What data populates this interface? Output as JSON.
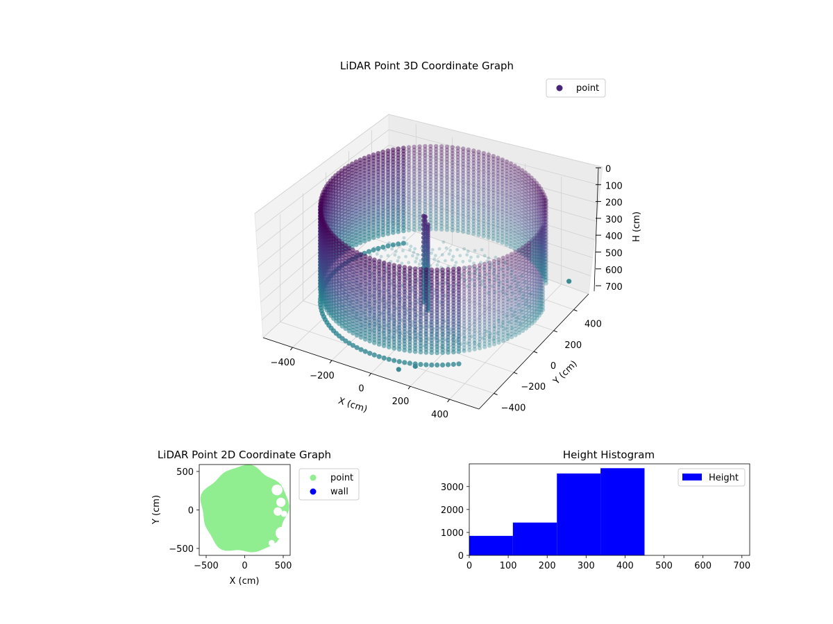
{
  "chart_data": [
    {
      "type": "scatter",
      "projection": "3d",
      "title": "LiDAR Point 3D Coordinate Graph",
      "xlabel": "X (cm)",
      "ylabel": "Y (cm)",
      "zlabel": "H (cm)",
      "xticks": [
        "−400",
        "−200",
        "0",
        "200",
        "400"
      ],
      "yticks": [
        "−400",
        "−200",
        "0",
        "200",
        "400"
      ],
      "zticks": [
        "0",
        "100",
        "200",
        "300",
        "400",
        "500",
        "600",
        "700"
      ],
      "xlim": [
        -550,
        550
      ],
      "ylim": [
        -550,
        550
      ],
      "zlim": [
        0,
        700
      ],
      "z_inverted": true,
      "grid": true,
      "legend": {
        "placement": "top-right",
        "entries": [
          "point"
        ]
      },
      "colormap": "viridis (dark purple to teal)",
      "series": [
        {
          "name": "point",
          "description_points": [
            {
              "x": 380,
              "y": 530,
              "h": 680
            },
            {
              "x": 150,
              "y": -420,
              "h": 680
            },
            {
              "x": 100,
              "y": -480,
              "h": 680
            }
          ]
        }
      ]
    },
    {
      "type": "scatter",
      "title": "LiDAR Point 2D Coordinate Graph",
      "xlabel": "X (cm)",
      "ylabel": "Y (cm)",
      "xticks": [
        "−500",
        "0",
        "500"
      ],
      "yticks": [
        "−500",
        "0",
        "500"
      ],
      "xlim": [
        -590,
        590
      ],
      "ylim": [
        -590,
        590
      ],
      "legend": {
        "placement": "outside-right",
        "entries": [
          "point",
          "wall"
        ]
      },
      "series": [
        {
          "name": "point",
          "color": "#90ee90"
        },
        {
          "name": "wall",
          "color": "#0000ff"
        }
      ]
    },
    {
      "type": "bar",
      "title": "Height Histogram",
      "xticks": [
        "0",
        "100",
        "200",
        "300",
        "400",
        "500",
        "600",
        "700"
      ],
      "yticks": [
        "0",
        "1000",
        "2000",
        "3000"
      ],
      "xlim": [
        0,
        720
      ],
      "ylim": [
        0,
        3990
      ],
      "legend": {
        "placement": "top-right",
        "entries": [
          "Height"
        ]
      },
      "series": [
        {
          "name": "Height",
          "color": "#0000ff",
          "bins": [
            {
              "start": 0,
              "end": 112,
              "count": 850
            },
            {
              "start": 112,
              "end": 225,
              "count": 1430
            },
            {
              "start": 225,
              "end": 337,
              "count": 3570
            },
            {
              "start": 337,
              "end": 450,
              "count": 3800
            }
          ]
        }
      ]
    }
  ]
}
